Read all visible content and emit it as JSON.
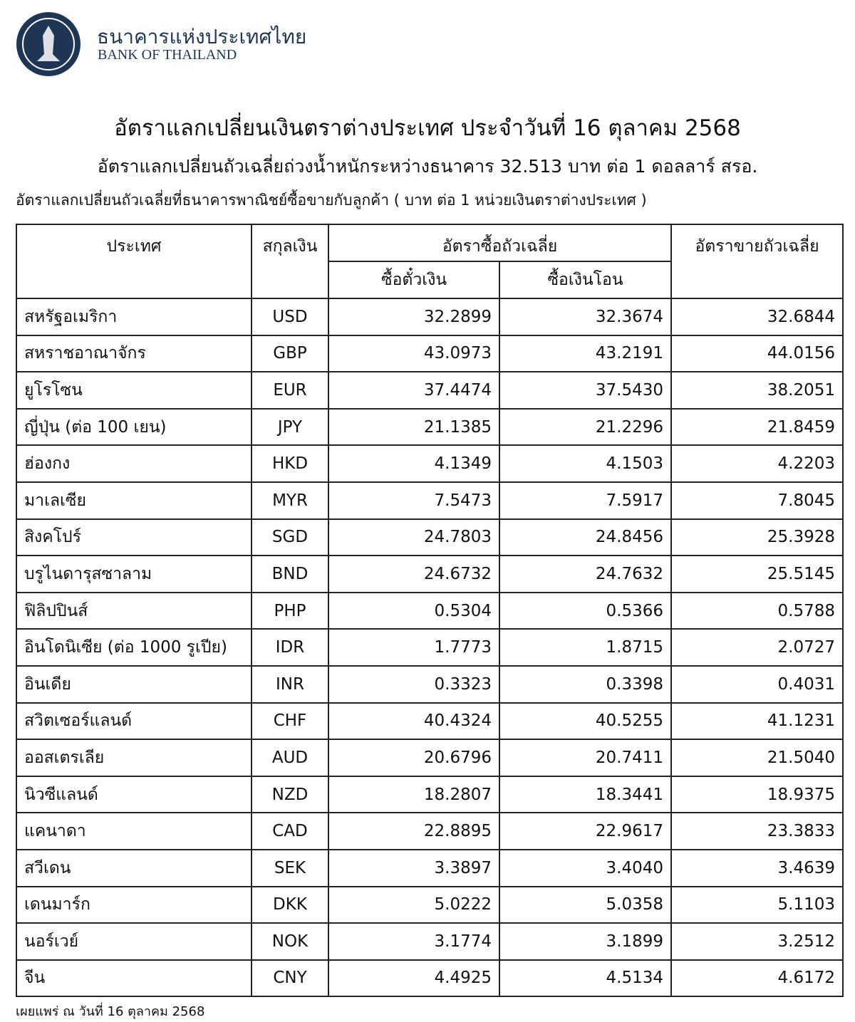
{
  "header": {
    "name_th": "ธนาคารแห่งประเทศไทย",
    "name_en": "BANK OF THAILAND"
  },
  "title": "อัตราแลกเปลี่ยนเงินตราต่างประเทศ ประจำวันที่ 16 ตุลาคม 2568",
  "subtitle": "อัตราแลกเปลี่ยนถัวเฉลี่ยถ่วงน้ำหนักระหว่างธนาคาร 32.513 บาท ต่อ 1 ดอลลาร์ สรอ.",
  "note": "อัตราแลกเปลี่ยนถัวเฉลี่ยที่ธนาคารพาณิชย์ซื้อขายกับลูกค้า ( บาท ต่อ 1 หน่วยเงินตราต่างประเทศ )",
  "table": {
    "columns": [
      "ประเทศ",
      "สกุลเงิน",
      "อัตราซื้อถัวเฉลี่ย",
      "อัตราขายถัวเฉลี่ย"
    ],
    "sub_columns": [
      "ซื้อตั๋วเงิน",
      "ซื้อเงินโอน"
    ],
    "rows": [
      [
        "สหรัฐอเมริกา",
        "USD",
        "32.2899",
        "32.3674",
        "32.6844"
      ],
      [
        "สหราชอาณาจักร",
        "GBP",
        "43.0973",
        "43.2191",
        "44.0156"
      ],
      [
        "ยูโรโซน",
        "EUR",
        "37.4474",
        "37.5430",
        "38.2051"
      ],
      [
        "ญี่ปุ่น (ต่อ 100 เยน)",
        "JPY",
        "21.1385",
        "21.2296",
        "21.8459"
      ],
      [
        "ฮ่องกง",
        "HKD",
        "4.1349",
        "4.1503",
        "4.2203"
      ],
      [
        "มาเลเซีย",
        "MYR",
        "7.5473",
        "7.5917",
        "7.8045"
      ],
      [
        "สิงคโปร์",
        "SGD",
        "24.7803",
        "24.8456",
        "25.3928"
      ],
      [
        "บรูไนดารุสซาลาม",
        "BND",
        "24.6732",
        "24.7632",
        "25.5145"
      ],
      [
        "ฟิลิปปินส์",
        "PHP",
        "0.5304",
        "0.5366",
        "0.5788"
      ],
      [
        "อินโดนิเซีย (ต่อ 1000 รูเปีย)",
        "IDR",
        "1.7773",
        "1.8715",
        "2.0727"
      ],
      [
        "อินเดีย",
        "INR",
        "0.3323",
        "0.3398",
        "0.4031"
      ],
      [
        "สวิตเซอร์แลนด์",
        "CHF",
        "40.4324",
        "40.5255",
        "41.1231"
      ],
      [
        "ออสเตรเลีย",
        "AUD",
        "20.6796",
        "20.7411",
        "21.5040"
      ],
      [
        "นิวซีแลนด์",
        "NZD",
        "18.2807",
        "18.3441",
        "18.9375"
      ],
      [
        "แคนาดา",
        "CAD",
        "22.8895",
        "22.9617",
        "23.3833"
      ],
      [
        "สวีเดน",
        "SEK",
        "3.3897",
        "3.4040",
        "3.4639"
      ],
      [
        "เดนมาร์ก",
        "DKK",
        "5.0222",
        "5.0358",
        "5.1103"
      ],
      [
        "นอร์เวย์",
        "NOK",
        "3.1774",
        "3.1899",
        "3.2512"
      ],
      [
        "จีน",
        "CNY",
        "4.4925",
        "4.5134",
        "4.6172"
      ]
    ]
  },
  "footer": "เผยแพร่ ณ วันที่ 16 ตุลาคม 2568"
}
